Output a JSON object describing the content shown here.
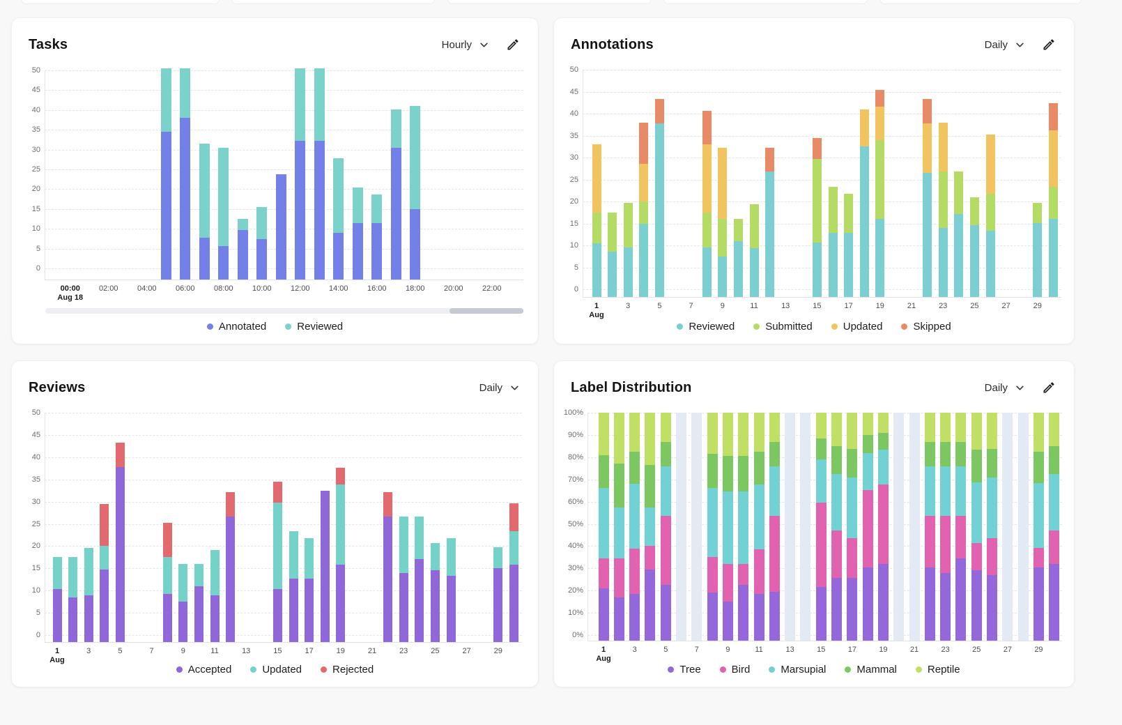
{
  "page": {
    "background": "#f8f8f8"
  },
  "chart_data": [
    {
      "id": "tasks",
      "type": "bar",
      "stacked": true,
      "title": "Tasks",
      "interval": "Hourly",
      "has_edit_icon": true,
      "legend_position": "bottom",
      "grid": true,
      "ylim": [
        0,
        50
      ],
      "ymax": 50,
      "ytick_labels": [
        "0",
        "5",
        "10",
        "15",
        "20",
        "25",
        "30",
        "35",
        "40",
        "45",
        "50"
      ],
      "xticks": [
        {
          "i": 0,
          "label": "00:00",
          "sub": "Aug 18",
          "bold": true
        },
        {
          "i": 2,
          "label": "02:00"
        },
        {
          "i": 4,
          "label": "04:00"
        },
        {
          "i": 6,
          "label": "06:00"
        },
        {
          "i": 8,
          "label": "08:00"
        },
        {
          "i": 10,
          "label": "10:00"
        },
        {
          "i": 12,
          "label": "12:00"
        },
        {
          "i": 14,
          "label": "14:00"
        },
        {
          "i": 16,
          "label": "16:00"
        },
        {
          "i": 18,
          "label": "18:00"
        },
        {
          "i": 20,
          "label": "20:00"
        },
        {
          "i": 22,
          "label": "22:00"
        }
      ],
      "series": [
        {
          "name": "Annotated",
          "color": "#7380e8",
          "values": [
            0,
            0,
            0,
            0,
            0,
            34.5,
            38,
            7.7,
            5.7,
            9.7,
            7.4,
            23.8,
            32.3,
            32.3,
            9,
            11.5,
            11.5,
            30.5,
            15,
            0,
            0,
            0,
            0,
            0
          ]
        },
        {
          "name": "Reviewed",
          "color": "#7ad2cb",
          "values": [
            0,
            0,
            0,
            0,
            0,
            16,
            12.5,
            23.8,
            24.8,
            2.8,
            8.1,
            0,
            18.2,
            18.2,
            18.8,
            9,
            7.2,
            9.7,
            26,
            0,
            0,
            0,
            0,
            0
          ]
        }
      ],
      "scrollbar": {
        "thumb_left_pct": 84.5,
        "thumb_width_pct": 15.5
      }
    },
    {
      "id": "annotations",
      "type": "bar",
      "stacked": true,
      "title": "Annotations",
      "interval": "Daily",
      "has_edit_icon": true,
      "legend_position": "bottom",
      "grid": true,
      "ylim": [
        0,
        50
      ],
      "ymax": 50,
      "ytick_labels": [
        "0",
        "5",
        "10",
        "15",
        "20",
        "25",
        "30",
        "35",
        "40",
        "45",
        "50"
      ],
      "xticks": [
        {
          "i": 0,
          "label": "1",
          "sub": "Aug",
          "bold": true
        },
        {
          "i": 2,
          "label": "3"
        },
        {
          "i": 4,
          "label": "5"
        },
        {
          "i": 6,
          "label": "7"
        },
        {
          "i": 8,
          "label": "9"
        },
        {
          "i": 10,
          "label": "11"
        },
        {
          "i": 12,
          "label": "13"
        },
        {
          "i": 14,
          "label": "15"
        },
        {
          "i": 16,
          "label": "17"
        },
        {
          "i": 18,
          "label": "19"
        },
        {
          "i": 20,
          "label": "21"
        },
        {
          "i": 22,
          "label": "23"
        },
        {
          "i": 24,
          "label": "25"
        },
        {
          "i": 26,
          "label": "27"
        },
        {
          "i": 28,
          "label": "29"
        }
      ],
      "series": [
        {
          "name": "Reviewed",
          "color": "#7bcfd1",
          "values": [
            10.5,
            8.5,
            9.5,
            15,
            37.8,
            0,
            0,
            9.5,
            7.5,
            11,
            9.3,
            26.8,
            0,
            0,
            10.7,
            12.8,
            12.8,
            32.5,
            16,
            0,
            0,
            26.5,
            14,
            17.2,
            14.6,
            13.4,
            0,
            0,
            15.1,
            16
          ]
        },
        {
          "name": "Submitted",
          "color": "#b4dc64",
          "values": [
            7,
            9,
            10.2,
            5,
            0,
            0,
            0,
            8,
            8.5,
            5,
            10,
            0,
            0,
            0,
            19,
            10.5,
            9,
            0,
            17.9,
            0,
            0,
            0,
            12.8,
            9.7,
            6.3,
            8.4,
            0,
            0,
            4.6,
            7.3
          ]
        },
        {
          "name": "Updated",
          "color": "#f1c45f",
          "values": [
            15.5,
            0,
            0,
            8.5,
            0,
            0,
            0,
            15.5,
            16.3,
            0,
            0,
            0,
            0,
            0,
            0,
            0,
            0,
            8.4,
            7.7,
            0,
            0,
            11.3,
            11.1,
            0,
            0,
            13.5,
            0,
            0,
            0,
            12.9
          ]
        },
        {
          "name": "Skipped",
          "color": "#e98a67",
          "values": [
            0,
            0,
            0,
            9.5,
            5.5,
            0,
            0,
            7.7,
            0,
            0,
            0,
            5.4,
            0,
            0,
            4.7,
            0,
            0,
            0,
            3.8,
            0,
            0,
            5.5,
            0,
            0,
            0,
            0,
            0,
            0,
            0,
            6.2
          ]
        }
      ]
    },
    {
      "id": "reviews",
      "type": "bar",
      "stacked": true,
      "title": "Reviews",
      "interval": "Daily",
      "has_edit_icon": false,
      "legend_position": "bottom",
      "grid": true,
      "ylim": [
        0,
        50
      ],
      "ymax": 50,
      "ytick_labels": [
        "0",
        "5",
        "10",
        "15",
        "20",
        "25",
        "30",
        "35",
        "40",
        "45",
        "50"
      ],
      "xticks": [
        {
          "i": 0,
          "label": "1",
          "sub": "Aug",
          "bold": true
        },
        {
          "i": 2,
          "label": "3"
        },
        {
          "i": 4,
          "label": "5"
        },
        {
          "i": 6,
          "label": "7"
        },
        {
          "i": 8,
          "label": "9"
        },
        {
          "i": 10,
          "label": "11"
        },
        {
          "i": 12,
          "label": "13"
        },
        {
          "i": 14,
          "label": "15"
        },
        {
          "i": 16,
          "label": "17"
        },
        {
          "i": 18,
          "label": "19"
        },
        {
          "i": 20,
          "label": "21"
        },
        {
          "i": 22,
          "label": "23"
        },
        {
          "i": 24,
          "label": "25"
        },
        {
          "i": 26,
          "label": "27"
        },
        {
          "i": 28,
          "label": "29"
        }
      ],
      "series": [
        {
          "name": "Accepted",
          "color": "#9067d8",
          "values": [
            10.3,
            8.5,
            9,
            14.8,
            37.8,
            0,
            0,
            9.2,
            7.5,
            11,
            9,
            26.7,
            0,
            0,
            10.4,
            12.7,
            12.7,
            32.4,
            15.9,
            0,
            0,
            26.7,
            14,
            17.1,
            14.5,
            13.3,
            0,
            0,
            15,
            15.9
          ]
        },
        {
          "name": "Updated",
          "color": "#74d2c9",
          "values": [
            7.2,
            9,
            10.6,
            5.2,
            0,
            0,
            0,
            8.3,
            8.5,
            5,
            10.2,
            0,
            0,
            0,
            19.4,
            10.6,
            9.1,
            0,
            17.9,
            0,
            0,
            0,
            12.7,
            9.6,
            6.2,
            8.5,
            0,
            0,
            4.7,
            7.4
          ]
        },
        {
          "name": "Rejected",
          "color": "#e2696e",
          "values": [
            0,
            0,
            0,
            9.5,
            5.5,
            0,
            0,
            7.7,
            0,
            0,
            0,
            5.5,
            0,
            0,
            4.7,
            0,
            0,
            0,
            3.8,
            0,
            0,
            5.5,
            0,
            0,
            0,
            0,
            0,
            0,
            0,
            6.4
          ]
        }
      ]
    },
    {
      "id": "label_distribution",
      "type": "bar",
      "stacked": true,
      "percent": true,
      "title": "Label Distribution",
      "interval": "Daily",
      "has_edit_icon": true,
      "legend_position": "bottom",
      "grid": true,
      "ylim": [
        0,
        100
      ],
      "ymax": 100,
      "no_data_color": "#e4eaf4",
      "no_data_days": [
        6,
        7,
        13,
        14,
        20,
        21,
        27,
        28
      ],
      "ytick_labels": [
        "0%",
        "10%",
        "20%",
        "30%",
        "40%",
        "50%",
        "60%",
        "70%",
        "80%",
        "90%",
        "100%"
      ],
      "xticks": [
        {
          "i": 0,
          "label": "1",
          "sub": "Aug",
          "bold": true
        },
        {
          "i": 2,
          "label": "3"
        },
        {
          "i": 4,
          "label": "5"
        },
        {
          "i": 6,
          "label": "7"
        },
        {
          "i": 8,
          "label": "9"
        },
        {
          "i": 10,
          "label": "11"
        },
        {
          "i": 12,
          "label": "13"
        },
        {
          "i": 14,
          "label": "15"
        },
        {
          "i": 16,
          "label": "17"
        },
        {
          "i": 18,
          "label": "19"
        },
        {
          "i": 20,
          "label": "21"
        },
        {
          "i": 22,
          "label": "23"
        },
        {
          "i": 24,
          "label": "25"
        },
        {
          "i": 26,
          "label": "27"
        },
        {
          "i": 28,
          "label": "29"
        }
      ],
      "series": [
        {
          "name": "Tree",
          "color": "#9468da",
          "values": [
            21,
            17,
            18.5,
            29.5,
            22.5,
            0,
            0,
            19,
            15,
            22.5,
            18.5,
            19.5,
            0,
            0,
            21.5,
            25.8,
            25.8,
            30.3,
            32,
            0,
            0,
            30.5,
            28,
            34.5,
            29,
            27,
            0,
            0,
            30.3,
            32
          ]
        },
        {
          "name": "Bird",
          "color": "#e163af",
          "values": [
            13.5,
            17.5,
            20.5,
            10.5,
            31,
            0,
            0,
            16,
            17,
            9.5,
            20,
            34,
            0,
            0,
            38,
            21.2,
            17.7,
            35,
            35.8,
            0,
            0,
            23,
            25.5,
            19,
            12.5,
            16.5,
            0,
            0,
            9,
            15
          ]
        },
        {
          "name": "Marsupial",
          "color": "#72d1d3",
          "values": [
            31.5,
            23,
            29,
            17.5,
            22.3,
            0,
            0,
            31,
            32.5,
            32.5,
            29.3,
            22.3,
            0,
            0,
            19.5,
            25.3,
            27.5,
            16.5,
            15.7,
            0,
            0,
            22.3,
            22.3,
            22.3,
            27,
            27.5,
            0,
            0,
            29,
            25.3
          ]
        },
        {
          "name": "Mammal",
          "color": "#7dc763",
          "values": [
            15,
            19.5,
            14.5,
            19,
            11,
            0,
            0,
            15.5,
            16,
            16,
            14.7,
            11,
            0,
            0,
            9.3,
            12.7,
            12.8,
            8.2,
            7.5,
            0,
            0,
            11,
            11,
            11,
            14.8,
            12.8,
            0,
            0,
            14.2,
            12.7
          ]
        },
        {
          "name": "Reptile",
          "color": "#bfe065",
          "values": [
            19,
            23,
            17.5,
            23.5,
            13.2,
            0,
            0,
            18.5,
            19.5,
            19.5,
            17.5,
            13.2,
            0,
            0,
            11.7,
            15,
            16.2,
            10,
            9,
            0,
            0,
            13.2,
            13.2,
            13.2,
            16.7,
            16.2,
            0,
            0,
            17.5,
            15
          ]
        }
      ]
    }
  ]
}
